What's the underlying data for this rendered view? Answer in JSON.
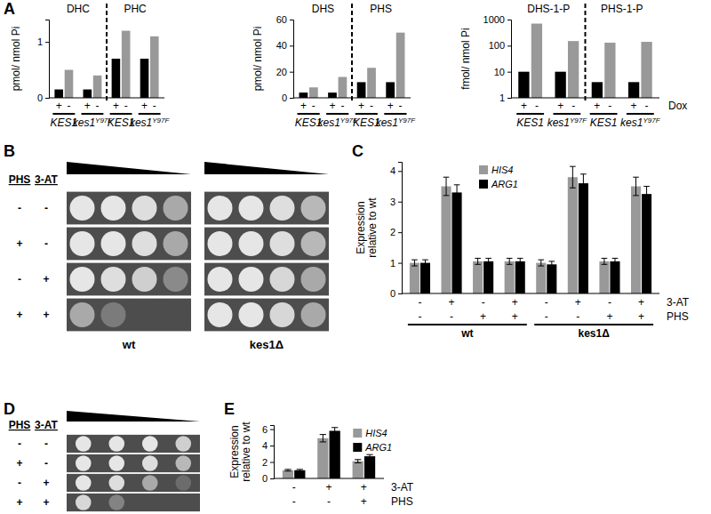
{
  "chart_data": [
    {
      "type": "bar",
      "panel_label": "A",
      "ylabel": "pmol/ nmol Pi",
      "ylim": [
        0,
        1.4
      ],
      "yticks": [
        0,
        1
      ],
      "categories": [
        "+",
        "-",
        "+",
        "-",
        "+",
        "-",
        "+",
        "-"
      ],
      "values": [
        0.15,
        0.5,
        0.15,
        0.4,
        0.7,
        1.2,
        0.7,
        1.1
      ],
      "colors": [
        "#000000",
        "#999999",
        "#000000",
        "#999999",
        "#000000",
        "#999999",
        "#000000",
        "#999999"
      ],
      "group_labels": [
        {
          "text": "KES1"
        },
        {
          "text": "kes1",
          "sup": "Y97F"
        },
        {
          "text": "KES1"
        },
        {
          "text": "kes1",
          "sup": "Y97F"
        }
      ],
      "panel_titles": [
        "DHC",
        "PHC"
      ]
    },
    {
      "type": "bar",
      "ylabel": "pmol/ nmol Pi",
      "ylim": [
        0,
        60
      ],
      "yticks": [
        0,
        20,
        40,
        60
      ],
      "categories": [
        "+",
        "-",
        "+",
        "-",
        "+",
        "-",
        "+",
        "-"
      ],
      "values": [
        4,
        8,
        4,
        16,
        12,
        23,
        12,
        50
      ],
      "colors": [
        "#000000",
        "#999999",
        "#000000",
        "#999999",
        "#000000",
        "#999999",
        "#000000",
        "#999999"
      ],
      "group_labels": [
        {
          "text": "KES1"
        },
        {
          "text": "kes1",
          "sup": "Y97F"
        },
        {
          "text": "KES1"
        },
        {
          "text": "kes1",
          "sup": "Y97F"
        }
      ],
      "panel_titles": [
        "DHS",
        "PHS"
      ]
    },
    {
      "type": "bar",
      "log": "y",
      "ylabel": "fmol/ nmol Pi",
      "ylim": [
        1,
        1000
      ],
      "yticks": [
        1,
        10,
        100,
        1000
      ],
      "categories": [
        "+",
        "-",
        "+",
        "-",
        "+",
        "-",
        "+",
        "-"
      ],
      "values": [
        10,
        700,
        10,
        150,
        4,
        130,
        4,
        140
      ],
      "colors": [
        "#000000",
        "#999999",
        "#000000",
        "#999999",
        "#000000",
        "#999999",
        "#000000",
        "#999999"
      ],
      "group_labels": [
        {
          "text": "KES1"
        },
        {
          "text": "kes1",
          "sup": "Y97F"
        },
        {
          "text": "KES1"
        },
        {
          "text": "kes1",
          "sup": "Y97F"
        }
      ],
      "panel_titles": [
        "DHS-1-P",
        "PHS-1-P"
      ],
      "xlabel": "Dox"
    },
    {
      "type": "spot_assay",
      "panel_label": "B",
      "conditions": [
        {
          "name": "PHS",
          "values": [
            "-",
            "+",
            "-",
            "+"
          ]
        },
        {
          "name": "3-AT",
          "values": [
            "-",
            "-",
            "+",
            "+"
          ]
        }
      ],
      "strains": [
        {
          "name": "wt",
          "growth": [
            [
              1,
              1,
              0.95,
              0.6
            ],
            [
              1,
              1,
              0.95,
              0.6
            ],
            [
              1,
              0.95,
              0.85,
              0.4
            ],
            [
              0.6,
              0.3,
              0,
              0
            ]
          ]
        },
        {
          "name": "kes1Δ",
          "growth": [
            [
              1,
              1,
              0.95,
              0.7
            ],
            [
              1,
              1,
              0.95,
              0.7
            ],
            [
              1,
              1,
              0.9,
              0.6
            ],
            [
              1,
              1,
              0.9,
              0.6
            ]
          ]
        }
      ]
    },
    {
      "type": "bar",
      "panel_label": "C",
      "ylabel": [
        "Expression",
        "relative to wt"
      ],
      "ylim": [
        0,
        4.3
      ],
      "yticks": [
        0,
        1,
        2,
        3,
        4
      ],
      "legend": "top-left",
      "conditions": [
        {
          "name": "3-AT",
          "values": [
            "-",
            "+",
            "-",
            "+",
            "-",
            "+",
            "-",
            "+"
          ]
        },
        {
          "name": "PHS",
          "values": [
            "-",
            "-",
            "+",
            "+",
            "-",
            "-",
            "+",
            "+"
          ]
        }
      ],
      "group_labels": [
        {
          "text": "wt"
        },
        {
          "text": "kes1Δ"
        }
      ],
      "series": [
        {
          "name": "HIS4",
          "color": "#999999",
          "values": [
            1,
            3.5,
            1.05,
            1.05,
            1,
            3.8,
            1.05,
            3.5
          ],
          "errors": [
            0.1,
            0.3,
            0.1,
            0.1,
            0.1,
            0.35,
            0.1,
            0.3
          ]
        },
        {
          "name": "ARG1",
          "color": "#000000",
          "values": [
            1,
            3.3,
            1.05,
            1.05,
            0.95,
            3.6,
            1.05,
            3.25
          ],
          "errors": [
            0.1,
            0.25,
            0.1,
            0.1,
            0.1,
            0.3,
            0.1,
            0.25
          ]
        }
      ]
    },
    {
      "type": "spot_assay",
      "panel_label": "D",
      "conditions": [
        {
          "name": "PHS",
          "values": [
            "-",
            "+",
            "-",
            "+"
          ]
        },
        {
          "name": "3-AT",
          "values": [
            "-",
            "-",
            "+",
            "+"
          ]
        }
      ],
      "strains": [
        {
          "growth": [
            [
              1,
              1,
              1,
              0.85
            ],
            [
              1,
              1,
              0.95,
              0.7
            ],
            [
              1,
              0.95,
              0.6,
              0.2
            ],
            [
              0.9,
              0.35,
              0,
              0
            ]
          ]
        }
      ]
    },
    {
      "type": "bar",
      "panel_label": "E",
      "ylabel": [
        "Expression",
        "relative to wt"
      ],
      "ylim": [
        0,
        6.5
      ],
      "yticks": [
        0,
        2,
        4,
        6
      ],
      "legend": "top-right",
      "conditions": [
        {
          "name": "3-AT",
          "values": [
            "-",
            "+",
            "+"
          ]
        },
        {
          "name": "PHS",
          "values": [
            "-",
            "-",
            "+"
          ]
        }
      ],
      "series": [
        {
          "name": "HIS4",
          "color": "#999999",
          "values": [
            1,
            4.9,
            2.1
          ],
          "errors": [
            0.1,
            0.45,
            0.2
          ]
        },
        {
          "name": "ARG1",
          "color": "#000000",
          "values": [
            1,
            5.8,
            2.7
          ],
          "errors": [
            0.1,
            0.4,
            0.2
          ]
        }
      ]
    }
  ]
}
